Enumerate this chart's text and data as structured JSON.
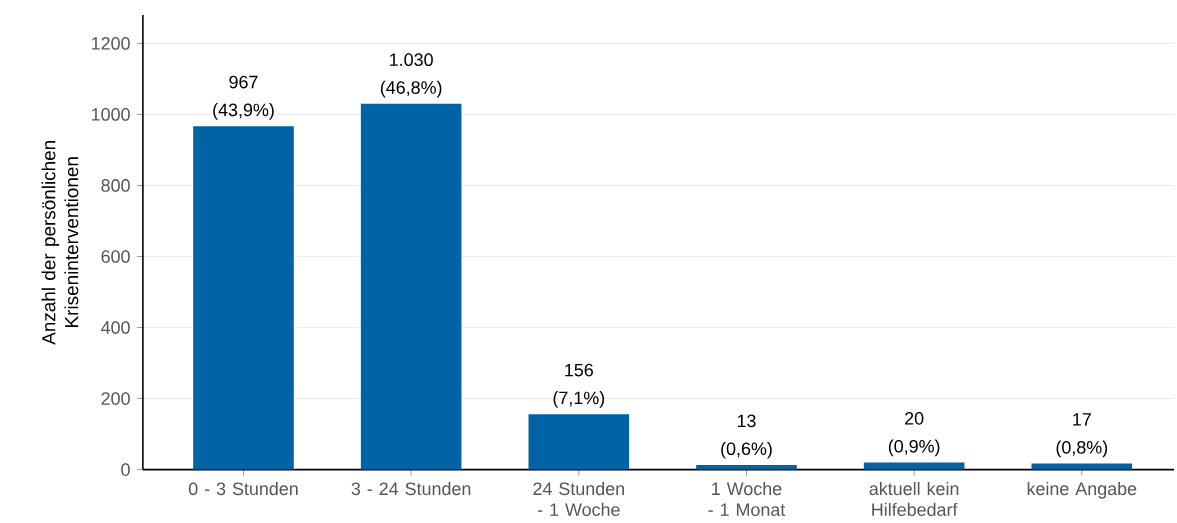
{
  "chart_data": {
    "type": "bar",
    "ylabel": "Anzahl der persönlichen Kriseninterventionen",
    "categories": [
      "0 - 3 Stunden",
      "3 - 24 Stunden",
      "24 Stunden - 1 Woche",
      "1 Woche - 1 Monat",
      "aktuell kein Hilfebedarf",
      "keine Angabe"
    ],
    "values": [
      967,
      1030,
      156,
      13,
      20,
      17
    ],
    "value_labels": [
      "967 (43,9%)",
      "1.030 (46,8%)",
      "156 (7,1%)",
      "13 (0,6%)",
      "20 (0,9%)",
      "17 (0,8%)"
    ],
    "color": "#0063a6",
    "ylim": [
      0,
      1280
    ],
    "yticks": [
      0,
      200,
      400,
      600,
      800,
      1000,
      1200
    ],
    "grid": "y"
  }
}
